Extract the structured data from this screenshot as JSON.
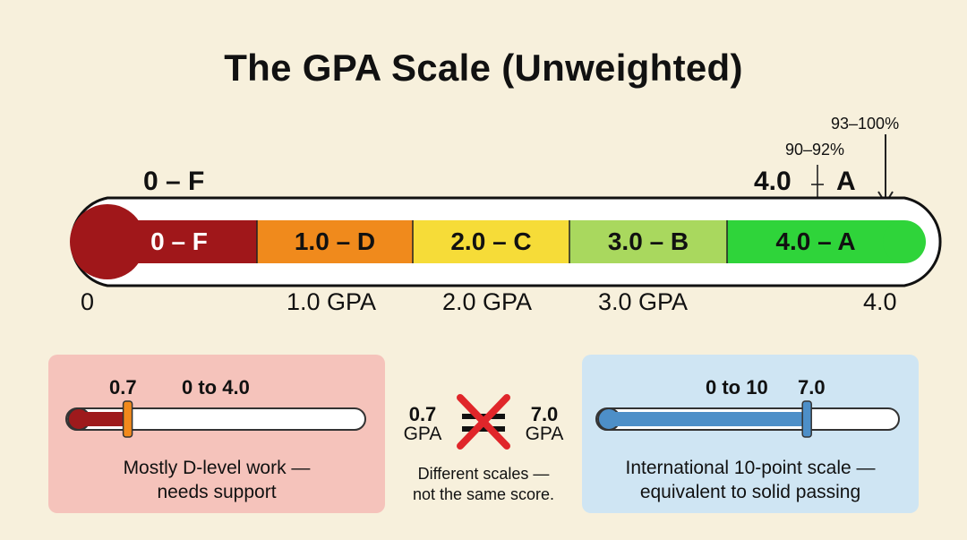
{
  "title": "The GPA Scale (Unweighted)",
  "left_top_label": "0 – F",
  "right_top_label": "4.0 A",
  "right_top_fraction_mark": "–",
  "note_93": "93–100%",
  "note_90": "90–92%",
  "segments": [
    {
      "label": "0 – F",
      "color": "#a0171a"
    },
    {
      "label": "1.0 – D",
      "color": "#f08a1c"
    },
    {
      "label": "2.0 – C",
      "color": "#f6dc38"
    },
    {
      "label": "3.0 – B",
      "color": "#a9d85e"
    },
    {
      "label": "4.0 – A",
      "color": "#2fd43a"
    }
  ],
  "ticks": [
    "0",
    "1.0 GPA",
    "2.0 GPA",
    "3.0 GPA",
    "4.0"
  ],
  "left_panel": {
    "marker_value": "0.7",
    "range": "0 to 4.0",
    "level": 0.175,
    "caption_line1": "Mostly D-level work —",
    "caption_line2": "needs support"
  },
  "middle": {
    "left_value": "0.7",
    "left_unit": "GPA",
    "right_value": "7.0",
    "right_unit": "GPA",
    "caption_line1": "Different scales —",
    "caption_line2": "not the same score."
  },
  "right_panel": {
    "range": "0 to 10",
    "marker_value": "7.0",
    "level": 0.7,
    "caption_line1": "International 10-point scale —",
    "caption_line2": "equivalent to solid passing"
  }
}
